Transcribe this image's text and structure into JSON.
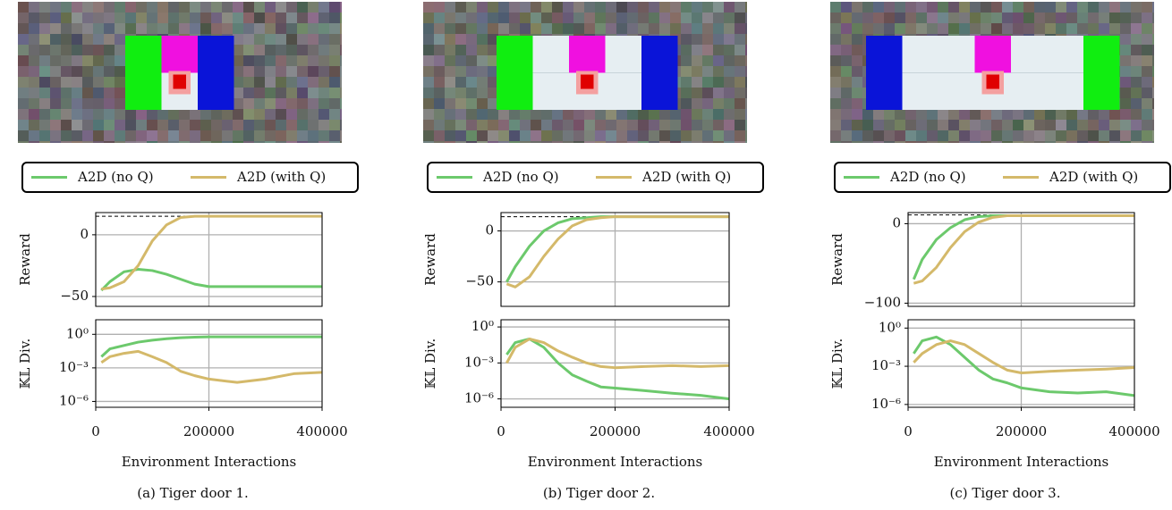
{
  "chart_data": [
    {
      "type": "line",
      "ylabel": "Reward",
      "legend": true,
      "x": [
        10000,
        25000,
        50000,
        75000,
        100000,
        125000,
        150000,
        175000,
        200000,
        250000,
        300000,
        350000,
        400000
      ],
      "xlim": [
        0,
        400000
      ],
      "xticks": [
        0,
        200000,
        400000
      ],
      "ylim": [
        -58,
        18
      ],
      "yticks": [
        {
          "value": -50,
          "label": "−50"
        },
        0
      ],
      "grid": true,
      "hline": 15,
      "series": [
        {
          "name": "A2D (no Q)",
          "color": "#6cc96c",
          "values": [
            -45,
            -38,
            -30,
            -28,
            -29,
            -32,
            -36,
            -40,
            -42,
            -42,
            -42,
            -42,
            -42
          ]
        },
        {
          "name": "A2D (with Q)",
          "color": "#d4b96a",
          "values": [
            -44,
            -43,
            -38,
            -25,
            -5,
            8,
            14,
            15,
            15,
            15,
            15,
            15,
            15
          ]
        }
      ]
    },
    {
      "type": "line",
      "ylabel": "𝕂𝕃 Div.",
      "xlabel": "Environment Interactions",
      "caption": "(a) Tiger door 1.",
      "log_y": true,
      "x": [
        10000,
        25000,
        50000,
        75000,
        100000,
        125000,
        150000,
        175000,
        200000,
        250000,
        300000,
        350000,
        400000
      ],
      "xlim": [
        0,
        400000
      ],
      "xticks": [
        0,
        200000,
        400000
      ],
      "ylim": [
        3e-07,
        20
      ],
      "yticks": [
        {
          "value": 1,
          "label": "10⁰"
        },
        {
          "value": 0.001,
          "label": "10⁻³"
        },
        {
          "value": 1e-06,
          "label": "10⁻⁶"
        }
      ],
      "grid": true,
      "series": [
        {
          "name": "A2D (no Q)",
          "color": "#6cc96c",
          "values": [
            0.01,
            0.05,
            0.1,
            0.2,
            0.3,
            0.4,
            0.5,
            0.55,
            0.6,
            0.6,
            0.6,
            0.6,
            0.6
          ]
        },
        {
          "name": "A2D (with Q)",
          "color": "#d4b96a",
          "values": [
            0.003,
            0.01,
            0.02,
            0.03,
            0.01,
            0.003,
            0.0005,
            0.0002,
            0.0001,
            5e-05,
            0.0001,
            0.0003,
            0.0004
          ]
        }
      ]
    },
    {
      "type": "line",
      "ylabel": "Reward",
      "legend": true,
      "x": [
        10000,
        25000,
        50000,
        75000,
        100000,
        125000,
        150000,
        175000,
        200000,
        250000,
        300000,
        350000,
        400000
      ],
      "xlim": [
        0,
        400000
      ],
      "xticks": [
        0,
        200000,
        400000
      ],
      "ylim": [
        -74,
        18
      ],
      "yticks": [
        {
          "value": -50,
          "label": "−50"
        },
        0
      ],
      "grid": true,
      "hline": 14,
      "series": [
        {
          "name": "A2D (no Q)",
          "color": "#6cc96c",
          "values": [
            -50,
            -35,
            -15,
            0,
            8,
            12,
            13,
            14,
            14,
            14,
            14,
            14,
            14
          ]
        },
        {
          "name": "A2D (with Q)",
          "color": "#d4b96a",
          "values": [
            -52,
            -55,
            -45,
            -25,
            -8,
            5,
            11,
            13,
            14,
            14,
            14,
            14,
            14
          ]
        }
      ]
    },
    {
      "type": "line",
      "ylabel": "𝕂𝕃 Div.",
      "xlabel": "Environment Interactions",
      "caption": "(b) Tiger door 2.",
      "log_y": true,
      "x": [
        10000,
        25000,
        50000,
        75000,
        100000,
        125000,
        150000,
        175000,
        200000,
        250000,
        300000,
        350000,
        400000
      ],
      "xlim": [
        0,
        400000
      ],
      "xticks": [
        0,
        200000,
        400000
      ],
      "ylim": [
        2e-07,
        4
      ],
      "yticks": [
        {
          "value": 1,
          "label": "10⁰"
        },
        {
          "value": 0.001,
          "label": "10⁻³"
        },
        {
          "value": 1e-06,
          "label": "10⁻⁶"
        }
      ],
      "grid": true,
      "series": [
        {
          "name": "A2D (no Q)",
          "color": "#6cc96c",
          "values": [
            0.005,
            0.05,
            0.1,
            0.02,
            0.001,
            0.0001,
            3e-05,
            1e-05,
            8e-06,
            5e-06,
            3e-06,
            2e-06,
            1e-06
          ]
        },
        {
          "name": "A2D (with Q)",
          "color": "#d4b96a",
          "values": [
            0.001,
            0.02,
            0.1,
            0.05,
            0.01,
            0.003,
            0.001,
            0.0005,
            0.0004,
            0.0005,
            0.0006,
            0.0005,
            0.0006
          ]
        }
      ]
    },
    {
      "type": "line",
      "ylabel": "Reward",
      "legend": true,
      "x": [
        10000,
        25000,
        50000,
        75000,
        100000,
        125000,
        150000,
        175000,
        200000,
        250000,
        300000,
        350000,
        400000
      ],
      "xlim": [
        0,
        400000
      ],
      "xticks": [
        0,
        200000,
        400000
      ],
      "ylim": [
        -104,
        14
      ],
      "yticks": [
        {
          "value": -100,
          "label": "−100"
        },
        0
      ],
      "grid": true,
      "hline": 11,
      "series": [
        {
          "name": "A2D (no Q)",
          "color": "#6cc96c",
          "values": [
            -70,
            -45,
            -20,
            -5,
            5,
            9,
            10,
            10,
            10,
            10,
            10,
            10,
            10
          ]
        },
        {
          "name": "A2D (with Q)",
          "color": "#d4b96a",
          "values": [
            -75,
            -72,
            -55,
            -30,
            -10,
            2,
            8,
            10,
            10,
            10,
            10,
            10,
            10
          ]
        }
      ]
    },
    {
      "type": "line",
      "ylabel": "𝕂𝕃 Div.",
      "xlabel": "Environment Interactions",
      "caption": "(c) Tiger door 3.",
      "log_y": true,
      "x": [
        10000,
        25000,
        50000,
        75000,
        100000,
        125000,
        150000,
        175000,
        200000,
        250000,
        300000,
        350000,
        400000
      ],
      "xlim": [
        0,
        400000
      ],
      "xticks": [
        0,
        200000,
        400000
      ],
      "ylim": [
        6e-07,
        4.5
      ],
      "yticks": [
        {
          "value": 1,
          "label": "10⁰"
        },
        {
          "value": 0.001,
          "label": "10⁻³"
        },
        {
          "value": 1e-06,
          "label": "10⁻⁶"
        }
      ],
      "grid": true,
      "series": [
        {
          "name": "A2D (no Q)",
          "color": "#6cc96c",
          "values": [
            0.01,
            0.1,
            0.2,
            0.05,
            0.005,
            0.0005,
            0.0001,
            5e-05,
            2e-05,
            1e-05,
            8e-06,
            1e-05,
            5e-06
          ]
        },
        {
          "name": "A2D (with Q)",
          "color": "#d4b96a",
          "values": [
            0.002,
            0.01,
            0.05,
            0.1,
            0.05,
            0.01,
            0.002,
            0.0005,
            0.0003,
            0.0004,
            0.0005,
            0.0006,
            0.0008
          ]
        }
      ]
    }
  ]
}
